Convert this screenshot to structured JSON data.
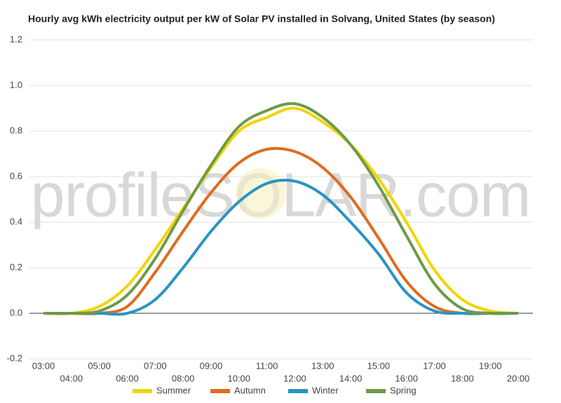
{
  "chart_data": {
    "type": "line",
    "title": "Hourly avg kWh electricity output per kW of Solar PV installed in Solvang, United States (by season)",
    "watermark": "profileSOLAR.com",
    "categories": [
      "03:00",
      "04:00",
      "05:00",
      "06:00",
      "07:00",
      "08:00",
      "09:00",
      "10:00",
      "11:00",
      "12:00",
      "13:00",
      "14:00",
      "15:00",
      "16:00",
      "17:00",
      "18:00",
      "19:00",
      "20:00"
    ],
    "series": [
      {
        "name": "Summer",
        "color": "#f2d400",
        "values": [
          0,
          0,
          0.03,
          0.12,
          0.28,
          0.46,
          0.64,
          0.8,
          0.86,
          0.9,
          0.84,
          0.74,
          0.59,
          0.4,
          0.19,
          0.06,
          0.01,
          0
        ]
      },
      {
        "name": "Autumn",
        "color": "#e06b1f",
        "values": [
          0,
          0,
          0,
          0.03,
          0.18,
          0.36,
          0.53,
          0.66,
          0.72,
          0.71,
          0.64,
          0.51,
          0.33,
          0.14,
          0.03,
          0,
          0,
          0
        ]
      },
      {
        "name": "Winter",
        "color": "#2a93c4",
        "values": [
          0,
          0,
          0,
          0,
          0.06,
          0.2,
          0.36,
          0.49,
          0.57,
          0.58,
          0.52,
          0.4,
          0.26,
          0.09,
          0.01,
          0,
          0,
          0
        ]
      },
      {
        "name": "Spring",
        "color": "#6e9a47",
        "values": [
          0,
          0,
          0.01,
          0.08,
          0.24,
          0.45,
          0.65,
          0.82,
          0.89,
          0.92,
          0.86,
          0.74,
          0.56,
          0.34,
          0.13,
          0.02,
          0,
          0
        ]
      }
    ],
    "ylim": [
      -0.2,
      1.2
    ],
    "yticks": [
      -0.2,
      {
        "value": 0,
        "label": "0.0"
      },
      0.2,
      0.4,
      0.6,
      0.8,
      {
        "value": 1,
        "label": "1.0"
      },
      1.2
    ],
    "grid": true,
    "legend": "bottom"
  }
}
